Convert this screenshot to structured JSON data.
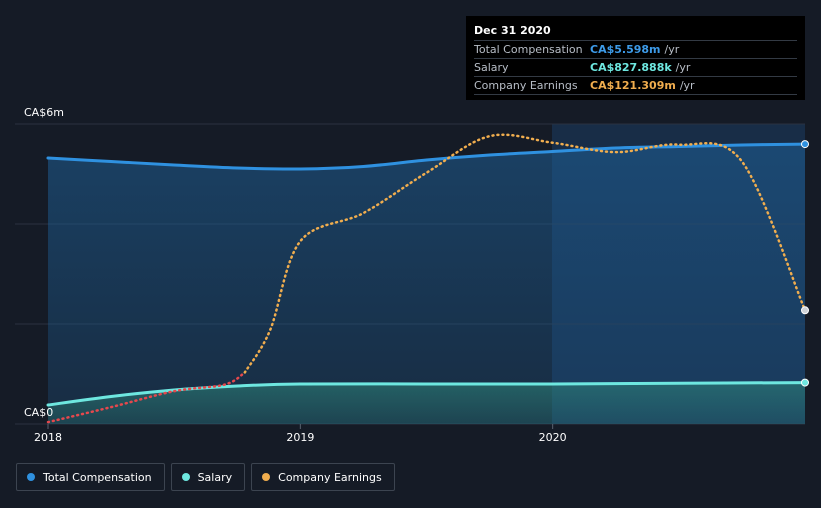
{
  "tooltip": {
    "date": "Dec 31 2020",
    "rows": [
      {
        "label": "Total Compensation",
        "value": "CA$5.598m",
        "unit": "/yr",
        "color": "#3d9be9"
      },
      {
        "label": "Salary",
        "value": "CA$827.888k",
        "unit": "/yr",
        "color": "#6ee7e0"
      },
      {
        "label": "Company Earnings",
        "value": "CA$121.309m",
        "unit": "/yr",
        "color": "#f0ad4e"
      }
    ]
  },
  "legend": [
    {
      "label": "Total Compensation",
      "color": "#2f91e0"
    },
    {
      "label": "Salary",
      "color": "#6ee7e0"
    },
    {
      "label": "Company Earnings",
      "color": "#f0ad4e"
    }
  ],
  "chart_data": {
    "type": "line",
    "y_tick_labels": [
      {
        "value": 6,
        "label": "CA$6m"
      },
      {
        "value": 0,
        "label": "CA$0"
      }
    ],
    "x_tick_labels": [
      "2018",
      "2019",
      "2020"
    ],
    "ylim": [
      0,
      6
    ],
    "xlim": [
      2018.0,
      2021.0
    ],
    "grid": true,
    "legend_position": "bottom-left",
    "series": [
      {
        "name": "Total Compensation",
        "color": "#2f91e0",
        "style": "solid",
        "x": [
          2018.0,
          2018.25,
          2018.5,
          2018.75,
          2019.0,
          2019.25,
          2019.5,
          2019.75,
          2020.0,
          2020.25,
          2020.5,
          2020.75,
          2021.0
        ],
        "y": [
          5.32,
          5.25,
          5.18,
          5.12,
          5.1,
          5.15,
          5.28,
          5.38,
          5.45,
          5.52,
          5.55,
          5.58,
          5.598
        ]
      },
      {
        "name": "Salary",
        "color": "#6ee7e0",
        "style": "solid",
        "x": [
          2018.0,
          2018.25,
          2018.5,
          2018.75,
          2019.0,
          2019.5,
          2020.0,
          2020.5,
          2021.0
        ],
        "y": [
          0.38,
          0.55,
          0.68,
          0.76,
          0.8,
          0.8,
          0.8,
          0.815,
          0.828
        ]
      },
      {
        "name": "Company Earnings",
        "unit": "CA$m",
        "color": "#f0ad4e",
        "low_color": "#e5484d",
        "style": "dotted",
        "x": [
          2018.0,
          2018.25,
          2018.5,
          2018.7,
          2018.78,
          2018.88,
          2019.0,
          2019.25,
          2019.5,
          2019.75,
          2020.0,
          2020.25,
          2020.5,
          2020.75,
          2021.0
        ],
        "y": [
          2,
          18,
          35,
          42,
          55,
          100,
          195,
          225,
          268,
          307,
          300,
          290,
          298,
          280,
          121.309
        ],
        "ylim": [
          0,
          320
        ]
      }
    ]
  }
}
